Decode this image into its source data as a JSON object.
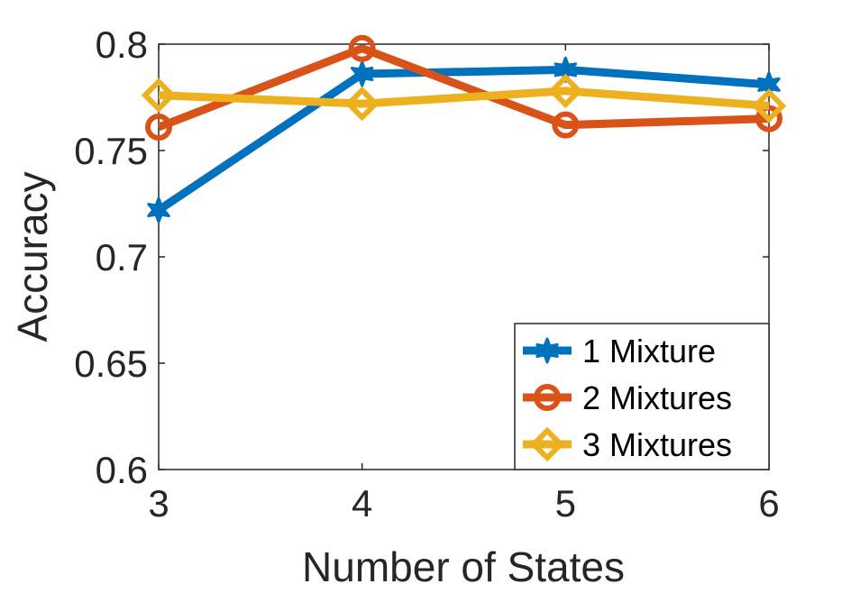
{
  "chart_data": {
    "type": "line",
    "xlabel": "Number of States",
    "ylabel": "Accuracy",
    "x": [
      3,
      4,
      5,
      6
    ],
    "xlim": [
      3,
      6
    ],
    "ylim": [
      0.6,
      0.8
    ],
    "xticks": [
      3,
      4,
      5,
      6
    ],
    "yticks": [
      0.6,
      0.65,
      0.7,
      0.75,
      0.8
    ],
    "ytick_labels": [
      "0.6",
      "0.65",
      "0.7",
      "0.75",
      "0.8"
    ],
    "grid": false,
    "legend_position": "bottom-right",
    "series": [
      {
        "name": "1 Mixture",
        "values": [
          0.722,
          0.786,
          0.788,
          0.781
        ],
        "color": "#0072BD",
        "marker": "hexagram"
      },
      {
        "name": "2 Mixtures",
        "values": [
          0.761,
          0.798,
          0.762,
          0.765
        ],
        "color": "#D95319",
        "marker": "circle"
      },
      {
        "name": "3 Mixtures",
        "values": [
          0.776,
          0.772,
          0.778,
          0.771
        ],
        "color": "#EDB120",
        "marker": "diamond"
      }
    ]
  }
}
